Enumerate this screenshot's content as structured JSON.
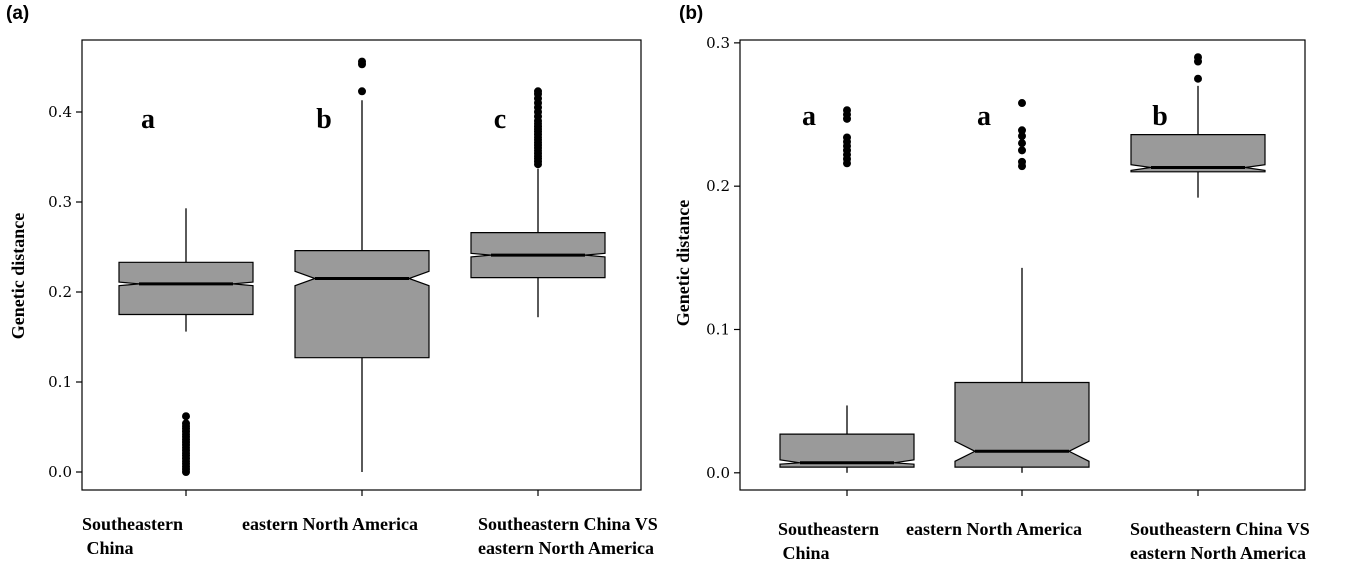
{
  "chart_data": [
    {
      "type": "boxplot",
      "panel": "(a)",
      "ylabel": "Genetic distance",
      "ylim": [
        -0.02,
        0.48
      ],
      "yticks": [
        0.0,
        0.1,
        0.2,
        0.3,
        0.4
      ],
      "ytick_labels": [
        "0.0",
        "0.1",
        "0.2",
        "0.3",
        "0.4"
      ],
      "notched": true,
      "box_color": "#9a9a9a",
      "categories": [
        {
          "label_lines": [
            "Southeastern",
            " China"
          ],
          "letter": "a",
          "whisker_low": 0.156,
          "q1": 0.175,
          "median": 0.209,
          "q3": 0.233,
          "whisker_high": 0.293,
          "notch_low": 0.207,
          "notch_high": 0.211,
          "outliers": [
            0.0,
            0.003,
            0.006,
            0.009,
            0.012,
            0.015,
            0.018,
            0.021,
            0.024,
            0.027,
            0.03,
            0.033,
            0.036,
            0.039,
            0.042,
            0.045,
            0.048,
            0.051,
            0.054,
            0.062
          ]
        },
        {
          "label_lines": [
            "eastern North America"
          ],
          "letter": "b",
          "whisker_low": 0.0,
          "q1": 0.127,
          "median": 0.215,
          "q3": 0.246,
          "whisker_high": 0.413,
          "notch_low": 0.207,
          "notch_high": 0.223,
          "outliers": [
            0.423,
            0.453,
            0.456
          ]
        },
        {
          "label_lines": [
            "Southeastern China VS",
            "eastern North America"
          ],
          "letter": "c",
          "whisker_low": 0.172,
          "q1": 0.216,
          "median": 0.241,
          "q3": 0.266,
          "whisker_high": 0.337,
          "notch_low": 0.239,
          "notch_high": 0.243,
          "outliers": [
            0.342,
            0.345,
            0.348,
            0.351,
            0.354,
            0.357,
            0.36,
            0.363,
            0.366,
            0.369,
            0.372,
            0.375,
            0.378,
            0.381,
            0.384,
            0.387,
            0.39,
            0.395,
            0.4,
            0.405,
            0.41,
            0.415,
            0.42,
            0.423
          ]
        }
      ]
    },
    {
      "type": "boxplot",
      "panel": "(b)",
      "ylabel": "Genetic distance",
      "ylim": [
        -0.012,
        0.302
      ],
      "yticks": [
        0.0,
        0.1,
        0.2,
        0.3
      ],
      "ytick_labels": [
        "0.0",
        "0.1",
        "0.2",
        "0.3"
      ],
      "notched": true,
      "box_color": "#9a9a9a",
      "categories": [
        {
          "label_lines": [
            "Southeastern",
            " China"
          ],
          "letter": "a",
          "whisker_low": 0.0,
          "q1": 0.004,
          "median": 0.007,
          "q3": 0.027,
          "whisker_high": 0.047,
          "notch_low": 0.006,
          "notch_high": 0.009,
          "outliers": [
            0.216,
            0.219,
            0.222,
            0.225,
            0.228,
            0.231,
            0.234,
            0.247,
            0.25,
            0.253
          ]
        },
        {
          "label_lines": [
            "eastern North America"
          ],
          "letter": "a",
          "whisker_low": 0.0,
          "q1": 0.004,
          "median": 0.015,
          "q3": 0.063,
          "whisker_high": 0.143,
          "notch_low": 0.008,
          "notch_high": 0.022,
          "outliers": [
            0.214,
            0.217,
            0.225,
            0.23,
            0.235,
            0.239,
            0.258
          ]
        },
        {
          "label_lines": [
            "Southeastern China VS",
            "eastern North America"
          ],
          "letter": "b",
          "whisker_low": 0.192,
          "q1": 0.21,
          "median": 0.213,
          "q3": 0.236,
          "whisker_high": 0.27,
          "notch_low": 0.211,
          "notch_high": 0.215,
          "outliers": [
            0.275,
            0.287,
            0.29
          ]
        }
      ]
    }
  ]
}
